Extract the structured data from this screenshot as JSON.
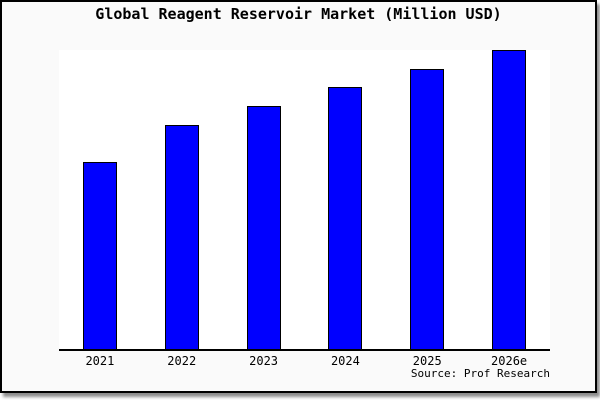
{
  "chart_data": {
    "type": "bar",
    "title": "Global Reagent Reservoir Market (Million USD)",
    "categories": [
      "2021",
      "2022",
      "2023",
      "2024",
      "2025",
      "2026e"
    ],
    "values": [
      62.9,
      75.1,
      81.5,
      87.7,
      93.7,
      100
    ],
    "ylim": [
      0,
      100
    ],
    "xlabel": "",
    "ylabel": "",
    "grid": false,
    "legend": false,
    "y_axis_visible": false,
    "values_note": "relative bar heights (max bar = 100); chart shows no y-axis tick labels",
    "source_text": "Source: Prof Research",
    "colors": {
      "bar_fill": "#0000ff",
      "bar_border": "#000000",
      "plot_background": "#ffffff",
      "card_background": "#fafafa",
      "frame_border": "#000000",
      "text": "#000000"
    }
  }
}
